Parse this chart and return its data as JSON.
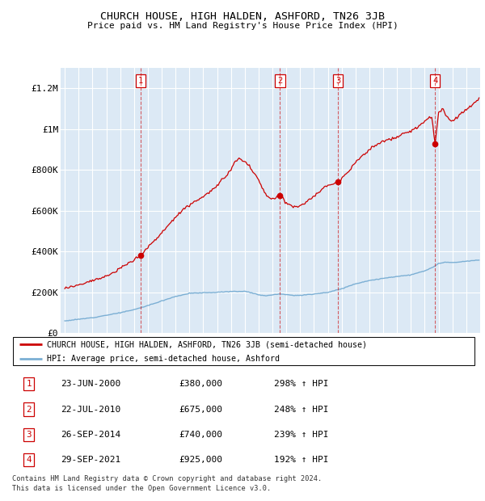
{
  "title": "CHURCH HOUSE, HIGH HALDEN, ASHFORD, TN26 3JB",
  "subtitle": "Price paid vs. HM Land Registry's House Price Index (HPI)",
  "hpi_color": "#7bafd4",
  "price_color": "#cc0000",
  "plot_bg_color": "#dce9f5",
  "grid_color": "#ffffff",
  "ylim": [
    0,
    1300000
  ],
  "yticks": [
    0,
    200000,
    400000,
    600000,
    800000,
    1000000,
    1200000
  ],
  "ytick_labels": [
    "£0",
    "£200K",
    "£400K",
    "£600K",
    "£800K",
    "£1M",
    "£1.2M"
  ],
  "transactions": [
    {
      "label": "1",
      "year": 2000.48,
      "price": 380000
    },
    {
      "label": "2",
      "year": 2010.55,
      "price": 675000
    },
    {
      "label": "3",
      "year": 2014.74,
      "price": 740000
    },
    {
      "label": "4",
      "year": 2021.75,
      "price": 925000
    }
  ],
  "table_rows": [
    {
      "num": "1",
      "date": "23-JUN-2000",
      "price": "£380,000",
      "hpi": "298% ↑ HPI"
    },
    {
      "num": "2",
      "date": "22-JUL-2010",
      "price": "£675,000",
      "hpi": "248% ↑ HPI"
    },
    {
      "num": "3",
      "date": "26-SEP-2014",
      "price": "£740,000",
      "hpi": "239% ↑ HPI"
    },
    {
      "num": "4",
      "date": "29-SEP-2021",
      "price": "£925,000",
      "hpi": "192% ↑ HPI"
    }
  ],
  "legend_line1": "CHURCH HOUSE, HIGH HALDEN, ASHFORD, TN26 3JB (semi-detached house)",
  "legend_line2": "HPI: Average price, semi-detached house, Ashford",
  "footer1": "Contains HM Land Registry data © Crown copyright and database right 2024.",
  "footer2": "This data is licensed under the Open Government Licence v3.0."
}
